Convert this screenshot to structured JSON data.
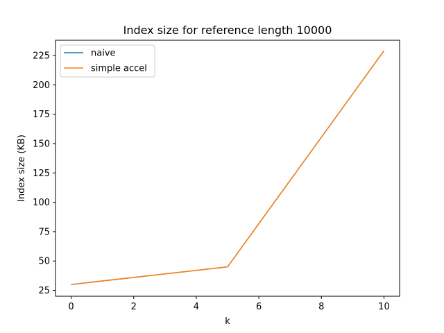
{
  "chart_data": {
    "type": "line",
    "title": "Index size for reference length 10000",
    "xlabel": "k",
    "ylabel": "Index size (KB)",
    "xlim": [
      -0.5,
      10.5
    ],
    "ylim": [
      20.0,
      238.0
    ],
    "xticks": [
      0,
      2,
      4,
      6,
      8,
      10
    ],
    "yticks": [
      25,
      50,
      75,
      100,
      125,
      150,
      175,
      200,
      225
    ],
    "grid": false,
    "legend_position": "top-left",
    "series": [
      {
        "name": "naive",
        "color": "#1f77b4",
        "x": [
          0,
          5,
          10
        ],
        "y": [
          30.0,
          45.0,
          229.0
        ]
      },
      {
        "name": "simple accel",
        "color": "#ff7f0e",
        "x": [
          0,
          5,
          10
        ],
        "y": [
          30.0,
          45.0,
          229.0
        ]
      }
    ]
  }
}
